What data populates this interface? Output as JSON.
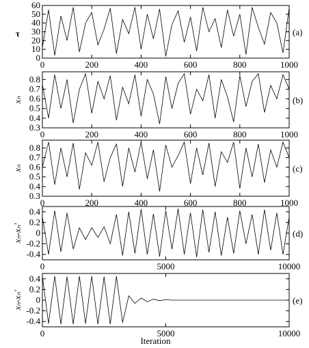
{
  "chart_data": [
    {
      "type": "line",
      "ylabel": "τ",
      "panel_label": "(a)",
      "color": "#000000",
      "x": [
        0,
        25,
        50,
        75,
        100,
        125,
        150,
        175,
        200,
        225,
        250,
        275,
        300,
        325,
        350,
        375,
        400,
        425,
        450,
        475,
        500,
        525,
        550,
        575,
        600,
        625,
        650,
        675,
        700,
        725,
        750,
        775,
        800,
        825,
        850,
        875,
        900,
        925,
        950,
        975,
        1000
      ],
      "values": [
        12,
        55,
        3,
        48,
        20,
        58,
        7,
        40,
        52,
        15,
        33,
        57,
        5,
        44,
        28,
        58,
        10,
        50,
        22,
        56,
        2,
        38,
        54,
        18,
        47,
        8,
        58,
        30,
        45,
        12,
        55,
        25,
        50,
        4,
        58,
        35,
        16,
        52,
        40,
        6,
        57
      ],
      "xlim": [
        0,
        1000
      ],
      "ylim": [
        0,
        60
      ],
      "xticks": [
        0,
        200,
        400,
        600,
        800,
        1000
      ],
      "yticks": [
        0,
        10,
        20,
        30,
        40,
        50,
        60
      ]
    },
    {
      "type": "line",
      "ylabel": "xₙ",
      "panel_label": "(b)",
      "color": "#000000",
      "x": [
        0,
        25,
        50,
        75,
        100,
        125,
        150,
        175,
        200,
        225,
        250,
        275,
        300,
        325,
        350,
        375,
        400,
        425,
        450,
        475,
        500,
        525,
        550,
        575,
        600,
        625,
        650,
        675,
        700,
        725,
        750,
        775,
        800,
        825,
        850,
        875,
        900,
        925,
        950,
        975,
        1000
      ],
      "values": [
        0.75,
        0.4,
        0.85,
        0.5,
        0.8,
        0.35,
        0.7,
        0.86,
        0.45,
        0.78,
        0.6,
        0.84,
        0.38,
        0.72,
        0.55,
        0.85,
        0.42,
        0.8,
        0.65,
        0.34,
        0.83,
        0.5,
        0.76,
        0.86,
        0.44,
        0.7,
        0.58,
        0.85,
        0.4,
        0.8,
        0.62,
        0.36,
        0.84,
        0.52,
        0.78,
        0.86,
        0.46,
        0.74,
        0.6,
        0.85,
        0.7
      ],
      "xlim": [
        0,
        1000
      ],
      "ylim": [
        0.3,
        0.88
      ],
      "xticks": [
        0,
        200,
        400,
        600,
        800,
        1000
      ],
      "yticks": [
        0.3,
        0.4,
        0.5,
        0.6,
        0.7,
        0.8
      ]
    },
    {
      "type": "line",
      "ylabel": "xₙ",
      "panel_label": "(c)",
      "color": "#000000",
      "x": [
        0,
        25,
        50,
        75,
        100,
        125,
        150,
        175,
        200,
        225,
        250,
        275,
        300,
        325,
        350,
        375,
        400,
        425,
        450,
        475,
        500,
        525,
        550,
        575,
        600,
        625,
        650,
        675,
        700,
        725,
        750,
        775,
        800,
        825,
        850,
        875,
        900,
        925,
        950,
        975,
        1000
      ],
      "values": [
        0.6,
        0.86,
        0.42,
        0.8,
        0.5,
        0.85,
        0.37,
        0.75,
        0.62,
        0.86,
        0.45,
        0.7,
        0.84,
        0.4,
        0.8,
        0.55,
        0.86,
        0.48,
        0.78,
        0.35,
        0.83,
        0.6,
        0.72,
        0.86,
        0.43,
        0.8,
        0.52,
        0.85,
        0.4,
        0.76,
        0.65,
        0.86,
        0.38,
        0.8,
        0.5,
        0.84,
        0.44,
        0.78,
        0.6,
        0.86,
        0.7
      ],
      "xlim": [
        0,
        1000
      ],
      "ylim": [
        0.3,
        0.88
      ],
      "xticks": [
        0,
        200,
        400,
        600,
        800,
        1000
      ],
      "yticks": [
        0.3,
        0.4,
        0.5,
        0.6,
        0.7,
        0.8
      ]
    },
    {
      "type": "line",
      "ylabel": "xₙ-xₙ'",
      "panel_label": "(d)",
      "color": "#000000",
      "x": [
        0,
        250,
        500,
        750,
        1000,
        1250,
        1500,
        1750,
        2000,
        2250,
        2500,
        2750,
        3000,
        3250,
        3500,
        3750,
        4000,
        4250,
        4500,
        4750,
        5000,
        5250,
        5500,
        5750,
        6000,
        6250,
        6500,
        6750,
        7000,
        7250,
        7500,
        7750,
        8000,
        8250,
        8500,
        8750,
        9000,
        9250,
        9500,
        9750,
        10000
      ],
      "values": [
        0.3,
        -0.4,
        0.42,
        -0.35,
        0.38,
        -0.3,
        0.1,
        -0.12,
        0.1,
        -0.08,
        0.12,
        -0.2,
        0.35,
        -0.42,
        0.4,
        -0.38,
        0.45,
        -0.4,
        0.36,
        -0.44,
        0.42,
        -0.3,
        0.46,
        -0.4,
        0.38,
        -0.45,
        0.44,
        -0.36,
        0.4,
        -0.42,
        0.3,
        -0.38,
        0.42,
        -0.2,
        0.35,
        -0.4,
        0.44,
        -0.32,
        0.38,
        -0.4,
        0.3
      ],
      "xlim": [
        0,
        10000
      ],
      "ylim": [
        -0.5,
        0.5
      ],
      "xticks": [
        0,
        5000,
        10000
      ],
      "yticks": [
        -0.4,
        -0.2,
        0,
        0.2,
        0.4
      ]
    },
    {
      "type": "line",
      "ylabel": "xₙ-xₙ'",
      "panel_label": "(e)",
      "xlabel": "Iteration",
      "color": "#000000",
      "x": [
        0,
        250,
        500,
        750,
        1000,
        1250,
        1500,
        1750,
        2000,
        2250,
        2500,
        2750,
        3000,
        3250,
        3500,
        3750,
        4000,
        4250,
        4500,
        4750,
        5000,
        5250,
        5500,
        5750,
        6000,
        6250,
        6500,
        6750,
        7000,
        7250,
        7500,
        7750,
        8000,
        8250,
        8500,
        8750,
        9000,
        9250,
        9500,
        9750,
        10000
      ],
      "values": [
        0.45,
        -0.44,
        0.45,
        -0.45,
        0.44,
        -0.45,
        0.45,
        -0.44,
        0.45,
        -0.45,
        0.44,
        -0.45,
        0.45,
        -0.42,
        0.08,
        -0.06,
        0.04,
        -0.03,
        0.02,
        -0.01,
        0.01,
        0,
        0,
        0,
        0,
        0,
        0,
        0,
        0,
        0,
        0,
        0,
        0,
        0,
        0,
        0,
        0,
        0,
        0,
        0,
        0
      ],
      "xlim": [
        0,
        10000
      ],
      "ylim": [
        -0.5,
        0.5
      ],
      "xticks": [
        0,
        5000,
        10000
      ],
      "yticks": [
        -0.4,
        -0.2,
        0,
        0.2,
        0.4
      ]
    }
  ]
}
